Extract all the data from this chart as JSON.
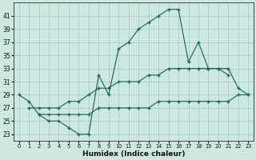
{
  "xlabel": "Humidex (Indice chaleur)",
  "bg_color": "#cce8e0",
  "grid_color": "#aacccc",
  "line_color": "#1a6b5a",
  "line1_x": [
    0,
    1,
    2,
    3,
    4,
    5,
    6,
    7,
    8,
    9,
    10,
    11,
    12,
    13,
    14,
    15,
    16,
    17,
    18,
    19,
    20,
    21
  ],
  "line1_y": [
    29,
    28,
    26,
    25,
    25,
    24,
    23,
    23,
    32,
    29,
    36,
    37,
    39,
    40,
    41,
    42,
    42,
    34,
    37,
    33,
    33,
    32
  ],
  "line2_x": [
    1,
    2,
    3,
    4,
    5,
    6,
    7,
    8,
    9,
    10,
    11,
    12,
    13,
    14,
    15,
    16,
    17,
    18,
    19,
    20,
    21,
    22,
    23
  ],
  "line2_y": [
    27,
    27,
    27,
    27,
    28,
    28,
    29,
    30,
    30,
    31,
    31,
    31,
    32,
    32,
    33,
    33,
    33,
    33,
    33,
    33,
    33,
    30,
    29
  ],
  "line3_x": [
    2,
    3,
    4,
    5,
    6,
    7,
    8,
    9,
    10,
    11,
    12,
    13,
    14,
    15,
    16,
    17,
    18,
    19,
    20,
    21,
    22,
    23
  ],
  "line3_y": [
    26,
    26,
    26,
    26,
    26,
    26,
    27,
    27,
    27,
    27,
    27,
    27,
    28,
    28,
    28,
    28,
    28,
    28,
    28,
    28,
    29,
    29
  ],
  "xlim": [
    -0.5,
    23.5
  ],
  "ylim": [
    22,
    43
  ],
  "yticks": [
    23,
    25,
    27,
    29,
    31,
    33,
    35,
    37,
    39,
    41
  ],
  "xticks": [
    0,
    1,
    2,
    3,
    4,
    5,
    6,
    7,
    8,
    9,
    10,
    11,
    12,
    13,
    14,
    15,
    16,
    17,
    18,
    19,
    20,
    21,
    22,
    23
  ]
}
